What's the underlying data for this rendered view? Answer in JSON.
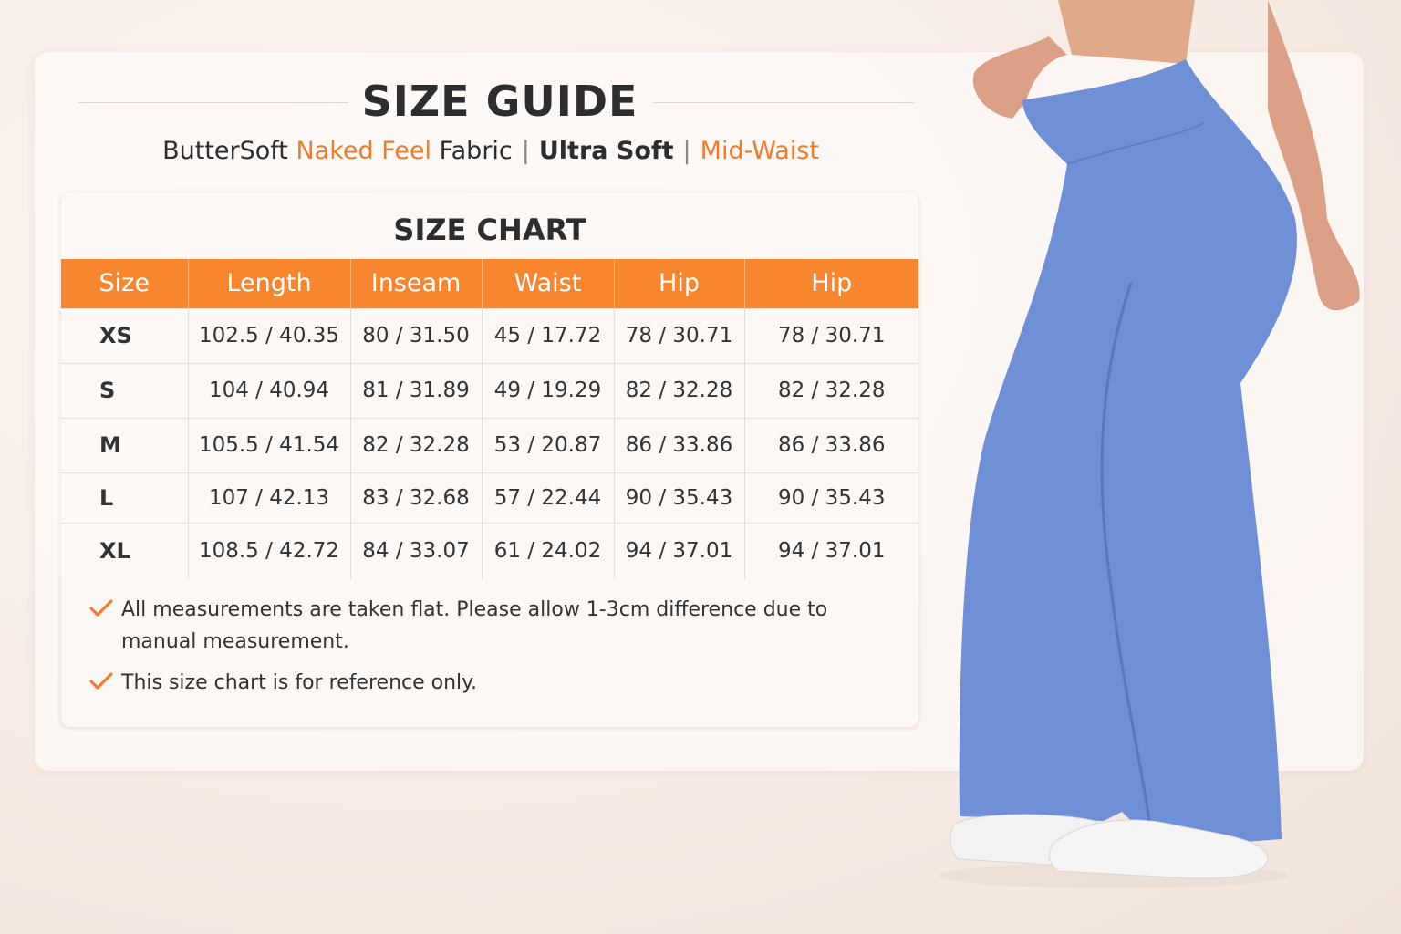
{
  "header": {
    "title": "SIZE GUIDE",
    "subtitle": {
      "part1": "ButterSoft ",
      "part2": "Naked Feel",
      "part3": " Fabric",
      "sep1": "|",
      "part4": "Ultra Soft",
      "sep2": "|",
      "part5": "Mid-Waist"
    }
  },
  "chart": {
    "title": "SIZE CHART",
    "columns": [
      "Size",
      "Length",
      "Inseam",
      "Waist",
      "Hip",
      "Hip"
    ],
    "rows": [
      [
        "XS",
        "102.5 / 40.35",
        "80 / 31.50",
        "45 / 17.72",
        "78 / 30.71",
        "78 / 30.71"
      ],
      [
        "S",
        "104 / 40.94",
        "81 / 31.89",
        "49 / 19.29",
        "82 / 32.28",
        "82 / 32.28"
      ],
      [
        "M",
        "105.5 / 41.54",
        "82 / 32.28",
        "53 / 20.87",
        "86 / 33.86",
        "86 / 33.86"
      ],
      [
        "L",
        "107 / 42.13",
        "83 / 32.68",
        "57 / 22.44",
        "90 / 35.43",
        "90 / 35.43"
      ],
      [
        "XL",
        "108.5 / 42.72",
        "84 / 33.07",
        "61 / 24.02",
        "94 / 37.01",
        "94 / 37.01"
      ]
    ]
  },
  "notes": [
    "All measurements are taken flat. Please allow 1-3cm difference due to manual measurement.",
    "This size chart is for reference only."
  ],
  "icons": {
    "note": "checkmark-icon"
  },
  "colors": {
    "accent": "#f8862f",
    "pants": "#6f8fd6"
  }
}
